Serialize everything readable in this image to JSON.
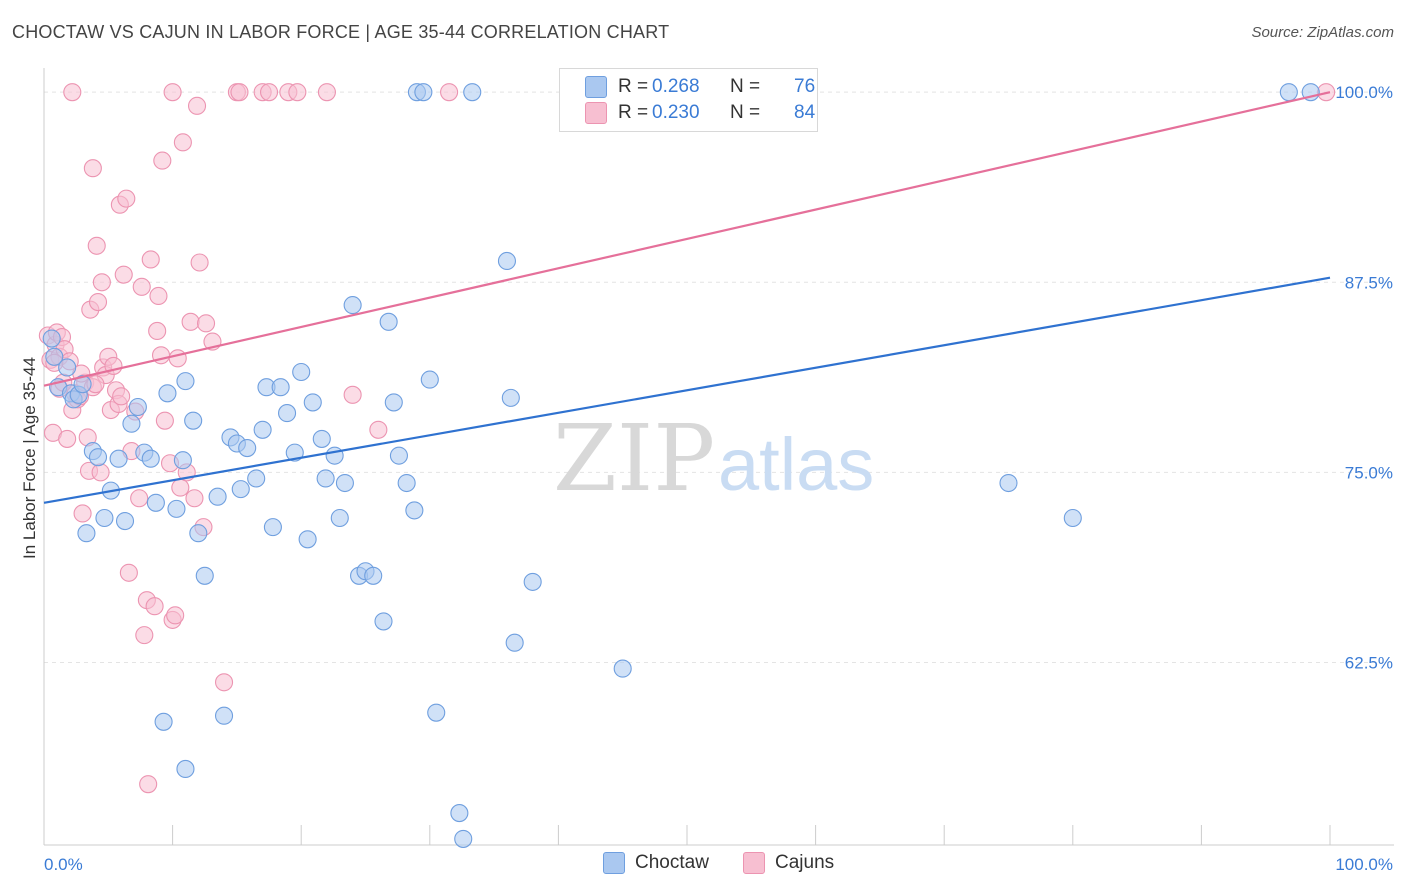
{
  "title": "CHOCTAW VS CAJUN IN LABOR FORCE | AGE 35-44 CORRELATION CHART",
  "source": "Source: ZipAtlas.com",
  "colors": {
    "choctaw_fill": "#aac8f0",
    "choctaw_stroke": "#6f9fdf",
    "choctaw_line": "#2f72d0",
    "cajun_fill": "#f7bfd1",
    "cajun_stroke": "#ec94b1",
    "cajun_line": "#e5709a",
    "tick_label": "#3a7bd5",
    "grid": "#e4e4e4"
  },
  "legend_top": {
    "rows": [
      {
        "r_label": "R =",
        "r_value": "0.268",
        "n_label": "N =",
        "n_value": "76"
      },
      {
        "r_label": "R =",
        "r_value": "0.230",
        "n_label": "N =",
        "n_value": "84"
      }
    ]
  },
  "legend_bottom": {
    "choctaw": "Choctaw",
    "cajuns": "Cajuns"
  },
  "watermark": {
    "zip": "ZIP",
    "atlas": "atlas"
  },
  "chart_data": {
    "type": "scatter",
    "title": "CHOCTAW VS CAJUN IN LABOR FORCE | AGE 35-44 CORRELATION CHART",
    "xlabel": "",
    "ylabel": "In Labor Force | Age 35-44",
    "xlim": [
      0,
      100
    ],
    "ylim": [
      50.5,
      100.8
    ],
    "x_tick_labels": [
      "0.0%",
      "100.0%"
    ],
    "y_ticks": [
      62.5,
      75.0,
      87.5,
      100.0
    ],
    "y_tick_labels": [
      "62.5%",
      "75.0%",
      "87.5%",
      "100.0%"
    ],
    "grid": true,
    "series": [
      {
        "name": "Choctaw",
        "r": 0.268,
        "n": 76,
        "trend": {
          "x": [
            0,
            100
          ],
          "y": [
            73.0,
            87.8
          ]
        },
        "points": [
          [
            0.6,
            83.8
          ],
          [
            0.8,
            82.6
          ],
          [
            1.1,
            80.6
          ],
          [
            1.8,
            81.9
          ],
          [
            2.1,
            80.2
          ],
          [
            2.3,
            79.8
          ],
          [
            2.7,
            80.1
          ],
          [
            3.0,
            80.8
          ],
          [
            3.3,
            71.0
          ],
          [
            3.8,
            76.4
          ],
          [
            4.2,
            76.0
          ],
          [
            4.7,
            72.0
          ],
          [
            5.2,
            73.8
          ],
          [
            5.8,
            75.9
          ],
          [
            6.3,
            71.8
          ],
          [
            6.8,
            78.2
          ],
          [
            7.3,
            79.3
          ],
          [
            7.8,
            76.3
          ],
          [
            8.3,
            75.9
          ],
          [
            8.7,
            73.0
          ],
          [
            9.3,
            58.6
          ],
          [
            9.6,
            80.2
          ],
          [
            10.3,
            72.6
          ],
          [
            10.8,
            75.8
          ],
          [
            11.0,
            81.0
          ],
          [
            11.6,
            78.4
          ],
          [
            12.0,
            71.0
          ],
          [
            12.5,
            68.2
          ],
          [
            13.5,
            73.4
          ],
          [
            14.0,
            59.0
          ],
          [
            14.5,
            77.3
          ],
          [
            15.0,
            76.9
          ],
          [
            15.3,
            73.9
          ],
          [
            15.8,
            76.6
          ],
          [
            16.5,
            74.6
          ],
          [
            17.0,
            77.8
          ],
          [
            17.3,
            80.6
          ],
          [
            17.8,
            71.4
          ],
          [
            18.4,
            80.6
          ],
          [
            18.9,
            78.9
          ],
          [
            19.5,
            76.3
          ],
          [
            20.0,
            81.6
          ],
          [
            20.5,
            70.6
          ],
          [
            20.9,
            79.6
          ],
          [
            21.6,
            77.2
          ],
          [
            21.9,
            74.6
          ],
          [
            22.6,
            76.1
          ],
          [
            23.0,
            72.0
          ],
          [
            23.4,
            74.3
          ],
          [
            24.0,
            86.0
          ],
          [
            24.5,
            68.2
          ],
          [
            25.0,
            68.5
          ],
          [
            25.6,
            68.2
          ],
          [
            26.4,
            65.2
          ],
          [
            26.8,
            84.9
          ],
          [
            27.2,
            79.6
          ],
          [
            27.6,
            76.1
          ],
          [
            28.2,
            74.3
          ],
          [
            28.8,
            72.5
          ],
          [
            30.0,
            81.1
          ],
          [
            30.5,
            59.2
          ],
          [
            32.3,
            52.6
          ],
          [
            32.6,
            50.9
          ],
          [
            36.0,
            88.9
          ],
          [
            36.3,
            79.9
          ],
          [
            36.6,
            63.8
          ],
          [
            38.0,
            67.8
          ],
          [
            45.0,
            62.1
          ],
          [
            75.0,
            74.3
          ],
          [
            80.0,
            72.0
          ],
          [
            11.0,
            55.5
          ],
          [
            29.0,
            100.0
          ],
          [
            29.5,
            100.0
          ],
          [
            33.3,
            100.0
          ],
          [
            96.8,
            100.0
          ],
          [
            98.5,
            100.0
          ]
        ]
      },
      {
        "name": "Cajuns",
        "r": 0.23,
        "n": 84,
        "trend": {
          "x": [
            0,
            100
          ],
          "y": [
            80.7,
            100.0
          ]
        },
        "points": [
          [
            0.3,
            84.0
          ],
          [
            0.5,
            82.4
          ],
          [
            0.7,
            77.6
          ],
          [
            0.9,
            83.4
          ],
          [
            1.0,
            84.2
          ],
          [
            1.2,
            82.6
          ],
          [
            1.4,
            83.9
          ],
          [
            1.6,
            83.1
          ],
          [
            1.8,
            77.2
          ],
          [
            2.0,
            82.3
          ],
          [
            2.2,
            79.1
          ],
          [
            2.4,
            80.2
          ],
          [
            2.6,
            79.8
          ],
          [
            2.8,
            80.0
          ],
          [
            3.0,
            72.3
          ],
          [
            3.2,
            80.9
          ],
          [
            3.4,
            77.3
          ],
          [
            3.5,
            75.1
          ],
          [
            3.6,
            85.7
          ],
          [
            3.8,
            80.6
          ],
          [
            3.8,
            95.0
          ],
          [
            4.1,
            89.9
          ],
          [
            4.2,
            86.2
          ],
          [
            4.4,
            75.0
          ],
          [
            4.5,
            87.5
          ],
          [
            4.6,
            81.9
          ],
          [
            4.8,
            81.4
          ],
          [
            5.0,
            82.6
          ],
          [
            5.2,
            79.1
          ],
          [
            5.4,
            82.0
          ],
          [
            5.6,
            80.4
          ],
          [
            5.8,
            79.5
          ],
          [
            5.9,
            92.6
          ],
          [
            6.2,
            88.0
          ],
          [
            6.4,
            93.0
          ],
          [
            6.6,
            68.4
          ],
          [
            6.8,
            76.4
          ],
          [
            7.1,
            79.0
          ],
          [
            7.4,
            73.3
          ],
          [
            7.6,
            87.2
          ],
          [
            7.8,
            64.3
          ],
          [
            8.0,
            66.6
          ],
          [
            8.1,
            54.5
          ],
          [
            8.3,
            89.0
          ],
          [
            8.6,
            66.2
          ],
          [
            8.8,
            84.3
          ],
          [
            8.9,
            86.6
          ],
          [
            9.1,
            82.7
          ],
          [
            9.2,
            95.5
          ],
          [
            9.4,
            78.4
          ],
          [
            9.8,
            75.6
          ],
          [
            10.0,
            65.3
          ],
          [
            10.2,
            65.6
          ],
          [
            10.4,
            82.5
          ],
          [
            10.6,
            74.0
          ],
          [
            10.8,
            96.7
          ],
          [
            11.1,
            75.0
          ],
          [
            11.4,
            84.9
          ],
          [
            11.7,
            73.3
          ],
          [
            11.9,
            99.1
          ],
          [
            12.1,
            88.8
          ],
          [
            12.4,
            71.4
          ],
          [
            12.6,
            84.8
          ],
          [
            13.1,
            83.6
          ],
          [
            14.0,
            61.2
          ],
          [
            15.0,
            100.0
          ],
          [
            15.2,
            100.0
          ],
          [
            17.0,
            100.0
          ],
          [
            17.5,
            100.0
          ],
          [
            19.0,
            100.0
          ],
          [
            19.7,
            100.0
          ],
          [
            22.0,
            100.0
          ],
          [
            10.0,
            100.0
          ],
          [
            24.0,
            80.1
          ],
          [
            26.0,
            77.8
          ],
          [
            31.5,
            100.0
          ],
          [
            99.7,
            100.0
          ],
          [
            2.2,
            100.0
          ],
          [
            1.2,
            80.5
          ],
          [
            2.9,
            81.5
          ],
          [
            6.0,
            80.0
          ],
          [
            4.0,
            80.8
          ],
          [
            0.8,
            82.2
          ],
          [
            1.5,
            80.9
          ]
        ]
      }
    ]
  }
}
